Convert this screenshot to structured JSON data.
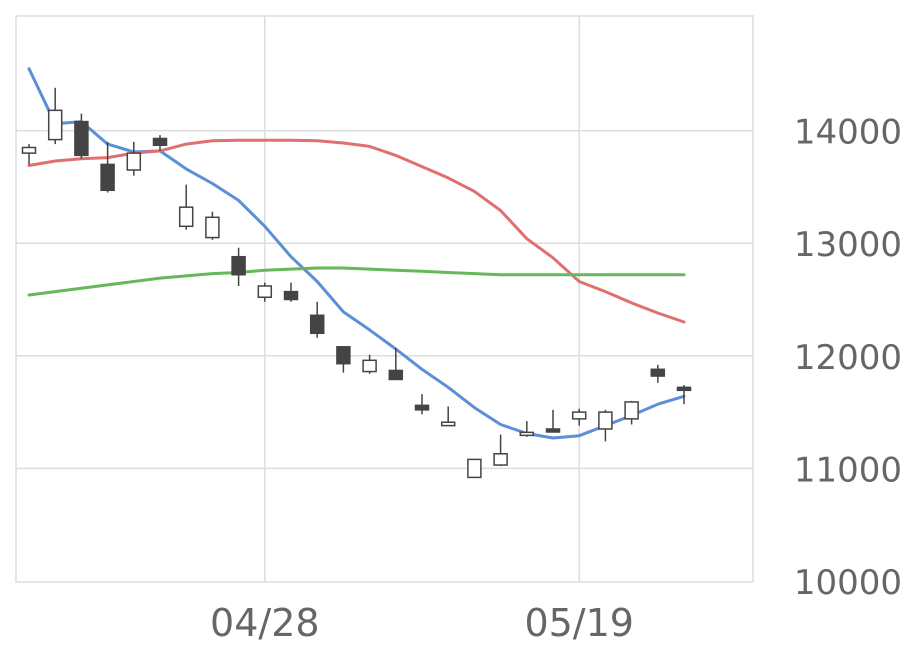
{
  "chart_data": {
    "type": "candlestick",
    "title": "",
    "xlabel": "",
    "ylabel": "",
    "ylim": [
      10000,
      15000
    ],
    "y_ticks": [
      "10000",
      "11000",
      "12000",
      "13000",
      "14000"
    ],
    "y_tick_values": [
      10000,
      11000,
      12000,
      13000,
      14000
    ],
    "x_tick_labels": [
      "04/28",
      "05/19"
    ],
    "x_tick_index": [
      9,
      21
    ],
    "grid": true,
    "y_axis_side": "right",
    "candles": [
      {
        "open": 13800,
        "high": 13880,
        "low": 13700,
        "close": 13850
      },
      {
        "open": 13920,
        "high": 14380,
        "low": 13880,
        "close": 14180
      },
      {
        "open": 14080,
        "high": 14150,
        "low": 13750,
        "close": 13780
      },
      {
        "open": 13700,
        "high": 13900,
        "low": 13450,
        "close": 13470
      },
      {
        "open": 13650,
        "high": 13900,
        "low": 13600,
        "close": 13800
      },
      {
        "open": 13930,
        "high": 13960,
        "low": 13820,
        "close": 13870
      },
      {
        "open": 13150,
        "high": 13520,
        "low": 13120,
        "close": 13320
      },
      {
        "open": 13050,
        "high": 13280,
        "low": 13030,
        "close": 13230
      },
      {
        "open": 12880,
        "high": 12960,
        "low": 12620,
        "close": 12720
      },
      {
        "open": 12520,
        "high": 12650,
        "low": 12480,
        "close": 12620
      },
      {
        "open": 12570,
        "high": 12650,
        "low": 12480,
        "close": 12500
      },
      {
        "open": 12360,
        "high": 12480,
        "low": 12160,
        "close": 12200
      },
      {
        "open": 12080,
        "high": 12080,
        "low": 11850,
        "close": 11930
      },
      {
        "open": 11860,
        "high": 12010,
        "low": 11840,
        "close": 11960
      },
      {
        "open": 11870,
        "high": 12070,
        "low": 11790,
        "close": 11790
      },
      {
        "open": 11560,
        "high": 11660,
        "low": 11480,
        "close": 11520
      },
      {
        "open": 11380,
        "high": 11550,
        "low": 11380,
        "close": 11410
      },
      {
        "open": 10920,
        "high": 11080,
        "low": 10920,
        "close": 11080
      },
      {
        "open": 11030,
        "high": 11300,
        "low": 11020,
        "close": 11130
      },
      {
        "open": 11320,
        "high": 11420,
        "low": 11280,
        "close": 11320
      },
      {
        "open": 11350,
        "high": 11520,
        "low": 11330,
        "close": 11330
      },
      {
        "open": 11440,
        "high": 11530,
        "low": 11380,
        "close": 11500
      },
      {
        "open": 11350,
        "high": 11520,
        "low": 11240,
        "close": 11500
      },
      {
        "open": 11440,
        "high": 11600,
        "low": 11390,
        "close": 11590
      },
      {
        "open": 11880,
        "high": 11920,
        "low": 11760,
        "close": 11820
      },
      {
        "open": 11720,
        "high": 11740,
        "low": 11570,
        "close": 11700
      }
    ],
    "series": [
      {
        "color": "#5b8fd6",
        "values": [
          14550,
          14060,
          14080,
          13880,
          13810,
          13820,
          13660,
          13530,
          13380,
          13150,
          12880,
          12660,
          12390,
          12230,
          12060,
          11880,
          11720,
          11540,
          11390,
          11310,
          11270,
          11290,
          11380,
          11470,
          11570,
          11640
        ]
      },
      {
        "color": "#e07070",
        "values": [
          13690,
          13730,
          13750,
          13760,
          13800,
          13820,
          13880,
          13910,
          13915,
          13915,
          13915,
          13910,
          13890,
          13860,
          13780,
          13680,
          13580,
          13460,
          13290,
          13040,
          12870,
          12660,
          12570,
          12470,
          12380,
          12300
        ]
      },
      {
        "color": "#66b85a",
        "values": [
          12540,
          12570,
          12600,
          12630,
          12660,
          12690,
          12710,
          12730,
          12740,
          12760,
          12770,
          12780,
          12780,
          12770,
          12760,
          12750,
          12740,
          12730,
          12720,
          12720,
          12720,
          12720,
          12720,
          12720,
          12720,
          12720
        ]
      }
    ],
    "candle_colors": {
      "up_fill": "#ffffff",
      "down_fill": "#444444",
      "stroke": "#444444"
    },
    "grid_color": "#dddddd",
    "label_color": "#666666"
  }
}
